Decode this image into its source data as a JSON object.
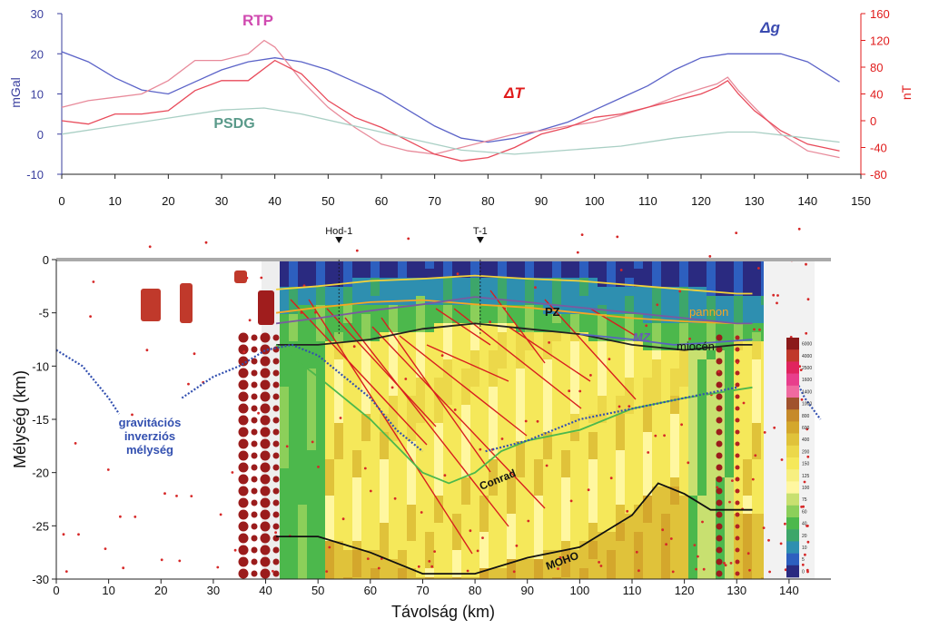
{
  "chart_data": [
    {
      "type": "line",
      "xlim": [
        0,
        150
      ],
      "xticks": [
        "0",
        "10",
        "20",
        "30",
        "40",
        "50",
        "60",
        "70",
        "80",
        "90",
        "100",
        "110",
        "120",
        "130",
        "140",
        "150"
      ],
      "left_axis": {
        "label": "mGal",
        "ylim": [
          -10,
          30
        ],
        "ticks": [
          "-10",
          "0",
          "10",
          "20",
          "30"
        ],
        "color": "#3a3f9e"
      },
      "right_axis": {
        "label": "nT",
        "ylim": [
          -80,
          160
        ],
        "ticks": [
          "-80",
          "-40",
          "0",
          "40",
          "80",
          "120",
          "160"
        ],
        "color": "#e01b1b"
      },
      "grid": false,
      "series": [
        {
          "name": "Δg",
          "axis": "left",
          "color": "#5b63c8",
          "x": [
            0,
            5,
            10,
            15,
            20,
            25,
            30,
            35,
            40,
            45,
            50,
            55,
            60,
            65,
            70,
            75,
            80,
            85,
            90,
            95,
            100,
            105,
            110,
            115,
            120,
            125,
            130,
            135,
            140,
            146
          ],
          "y": [
            20.5,
            18,
            14,
            11,
            10,
            13,
            16,
            18,
            19,
            18,
            16,
            13,
            10,
            6,
            2,
            -1,
            -2,
            -1,
            1,
            3,
            6,
            9,
            12,
            16,
            19,
            20,
            20,
            20,
            18,
            13
          ]
        },
        {
          "name": "RTP",
          "axis": "right",
          "color": "#e88a9a",
          "x": [
            0,
            5,
            10,
            15,
            20,
            25,
            30,
            35,
            38,
            40,
            45,
            50,
            55,
            60,
            65,
            70,
            75,
            80,
            85,
            90,
            95,
            100,
            105,
            110,
            115,
            120,
            123,
            125,
            127,
            130,
            135,
            140,
            146
          ],
          "y": [
            20,
            30,
            35,
            40,
            60,
            90,
            90,
            100,
            120,
            110,
            60,
            20,
            -10,
            -35,
            -45,
            -50,
            -40,
            -30,
            -20,
            -15,
            -8,
            -2,
            8,
            20,
            35,
            48,
            55,
            65,
            45,
            20,
            -20,
            -45,
            -55
          ]
        },
        {
          "name": "ΔT",
          "axis": "right",
          "color": "#e84a5a",
          "x": [
            0,
            5,
            10,
            15,
            20,
            25,
            30,
            35,
            40,
            45,
            50,
            55,
            60,
            65,
            70,
            75,
            80,
            85,
            90,
            95,
            100,
            105,
            110,
            115,
            120,
            123,
            125,
            127,
            130,
            135,
            140,
            146
          ],
          "y": [
            0,
            -5,
            10,
            10,
            15,
            45,
            60,
            60,
            90,
            70,
            30,
            5,
            -10,
            -30,
            -50,
            -60,
            -55,
            -40,
            -20,
            -10,
            5,
            10,
            20,
            30,
            40,
            50,
            60,
            40,
            15,
            -15,
            -35,
            -45
          ]
        },
        {
          "name": "PSDG",
          "axis": "left",
          "color": "#a9cfc4",
          "x": [
            0,
            10,
            20,
            30,
            38,
            45,
            55,
            65,
            75,
            85,
            95,
            105,
            115,
            125,
            130,
            140,
            146
          ],
          "y": [
            0,
            2,
            4,
            6,
            6.5,
            5,
            2,
            -1,
            -4,
            -5,
            -4,
            -3,
            -1,
            0.5,
            0.5,
            -1,
            -2
          ]
        }
      ],
      "annotations": [
        "RTP",
        "Δg",
        "ΔT",
        "PSDG"
      ]
    },
    {
      "type": "heatmap",
      "xlabel": "Távolság (km)",
      "ylabel": "Mélység (km)",
      "xlim": [
        0,
        148
      ],
      "ylim": [
        -30,
        0
      ],
      "xticks": [
        "0",
        "10",
        "20",
        "30",
        "40",
        "50",
        "60",
        "70",
        "80",
        "90",
        "100",
        "110",
        "120",
        "130",
        "140"
      ],
      "yticks": [
        "0",
        "-5",
        "-10",
        "-15",
        "-20",
        "-25",
        "-30"
      ],
      "wells": [
        {
          "name": "Hod-1",
          "x": 54
        },
        {
          "name": "T-1",
          "x": 81
        }
      ],
      "layers": [
        {
          "name": "pannon",
          "color": "#f5a623",
          "x": [
            42,
            50,
            60,
            70,
            80,
            90,
            100,
            110,
            120,
            130,
            133
          ],
          "depth": [
            -5,
            -4.5,
            -4,
            -3.8,
            -4.2,
            -4.5,
            -5,
            -5.5,
            -5.8,
            -6,
            -6
          ]
        },
        {
          "name": "miocén",
          "color": "#222222",
          "x": [
            42,
            50,
            60,
            70,
            80,
            90,
            100,
            110,
            120,
            130,
            133
          ],
          "depth": [
            -8,
            -8,
            -7.5,
            -6.5,
            -6,
            -6.5,
            -7,
            -8,
            -8.5,
            -8,
            -8
          ]
        },
        {
          "name": "PZ",
          "color": "#7a5aa0",
          "x": [
            42,
            50,
            60,
            70,
            80,
            90,
            100,
            110,
            120,
            130,
            133
          ],
          "depth": [
            -6,
            -5.5,
            -4.8,
            -4.2,
            -3.5,
            -4,
            -4.5,
            -5,
            -5.5,
            -6,
            -6
          ]
        },
        {
          "name": "MZ",
          "color": "#5a62c0",
          "x": [
            100,
            110,
            118,
            125,
            133
          ],
          "depth": [
            -7,
            -7.5,
            -8,
            -7.8,
            -7.5
          ]
        },
        {
          "name": "Conrad",
          "color": "#4cb84c",
          "x": [
            42,
            50,
            60,
            70,
            75,
            80,
            85,
            90,
            100,
            110,
            120,
            133
          ],
          "depth": [
            -8,
            -11,
            -15,
            -20,
            -21,
            -20,
            -18,
            -17,
            -16,
            -14,
            -13,
            -12
          ]
        },
        {
          "name": "MOHO",
          "color": "#111111",
          "x": [
            42,
            50,
            60,
            70,
            80,
            90,
            100,
            110,
            115,
            120,
            125,
            133
          ],
          "depth": [
            -26,
            -26,
            -27.5,
            -29.5,
            -29.5,
            -28,
            -27,
            -24,
            -21,
            -22,
            -23.5,
            -23.5
          ]
        },
        {
          "name": "",
          "color": "#f2d23a",
          "x": [
            42,
            50,
            60,
            70,
            80,
            90,
            100,
            110,
            120,
            130,
            133
          ],
          "depth": [
            -2.8,
            -2.5,
            -2,
            -1.8,
            -1.5,
            -1.8,
            -2,
            -2.4,
            -2.8,
            -3.2,
            -3.2
          ]
        },
        {
          "name": "gravitációs inverziós mélység",
          "color": "#3350b0",
          "x": [
            0,
            5,
            10,
            12
          ],
          "depth": [
            -8.5,
            -10,
            -13,
            -14.5
          ]
        },
        {
          "name": "",
          "color": "#3350b0",
          "x": [
            24,
            30,
            35,
            40,
            45,
            50,
            55,
            60,
            65,
            70
          ],
          "depth": [
            -13,
            -11,
            -10,
            -8.5,
            -8,
            -9,
            -11,
            -13,
            -16,
            -18
          ]
        },
        {
          "name": "",
          "color": "#3350b0",
          "x": [
            82,
            90,
            100,
            110,
            120,
            130
          ],
          "depth": [
            -18,
            -17,
            -15,
            -14,
            -13,
            -12
          ]
        },
        {
          "name": "",
          "color": "#3350b0",
          "x": [
            140,
            143,
            146
          ],
          "depth": [
            -10,
            -13,
            -15
          ]
        }
      ],
      "depth_labels": [
        "pannon",
        "miocén",
        "PZ",
        "MZ",
        "Conrad",
        "MOHO",
        "gravitációs",
        "inverziós",
        "mélység"
      ],
      "colorbar": {
        "ticks": [
          "6000",
          "4000",
          "2500",
          "1600",
          "1400",
          "1000",
          "800",
          "600",
          "400",
          "200",
          "150",
          "125",
          "100",
          "75",
          "60",
          "40",
          "20",
          "10",
          "5",
          "0"
        ],
        "colors": [
          "#8b1a1a",
          "#c0392b",
          "#e0245e",
          "#e83e8c",
          "#f06aa0",
          "#a0522d",
          "#c68a2a",
          "#d4a72c",
          "#e0c23a",
          "#ecd84a",
          "#f5e85a",
          "#f7ef80",
          "#fff7a0",
          "#c8e070",
          "#8ccf5a",
          "#4cb84c",
          "#3da66a",
          "#2e8fb0",
          "#2d5fbf",
          "#2a2a80"
        ]
      }
    }
  ]
}
